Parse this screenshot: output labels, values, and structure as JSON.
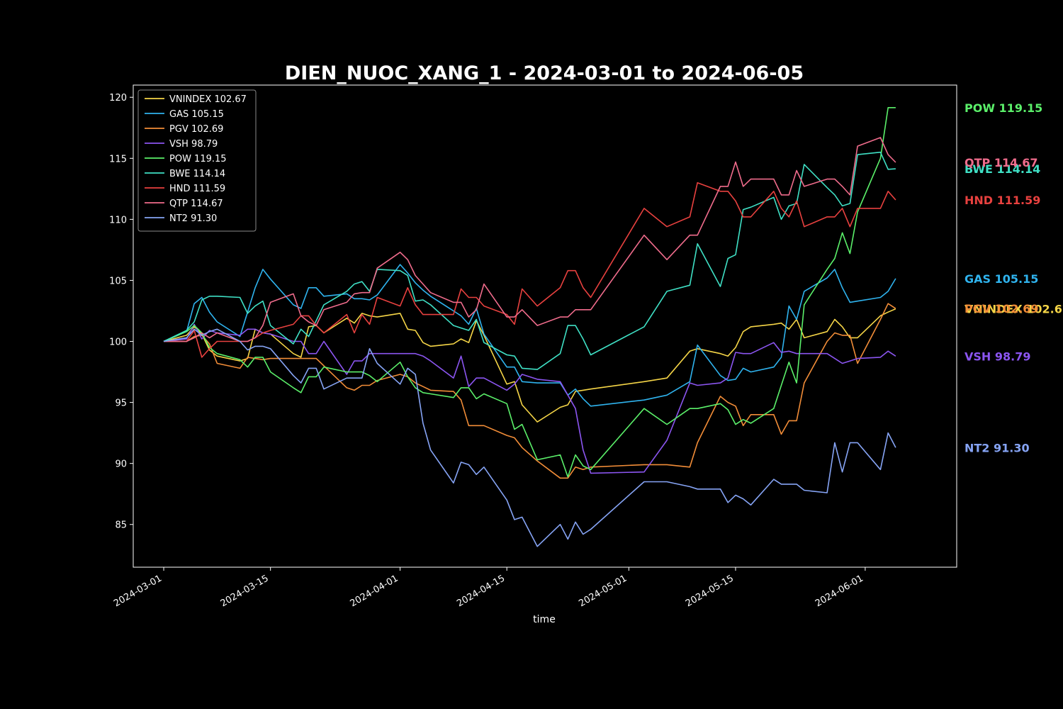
{
  "chart_data": {
    "type": "line",
    "title": "DIEN_NUOC_XANG_1 - 2024-03-01 to 2024-06-05",
    "xlabel": "time",
    "ylabel": "",
    "ylim": [
      81.5,
      121
    ],
    "xlim": [
      "2024-02-26",
      "2024-06-13"
    ],
    "x_ticks": [
      "2024-03-01",
      "2024-03-15",
      "2024-04-01",
      "2024-04-15",
      "2024-05-01",
      "2024-05-15",
      "2024-06-01"
    ],
    "y_ticks": [
      85,
      90,
      95,
      100,
      105,
      110,
      115,
      120
    ],
    "grid": false,
    "legend_position": "upper-left",
    "dates": [
      "2024-03-01",
      "2024-03-04",
      "2024-03-05",
      "2024-03-06",
      "2024-03-07",
      "2024-03-08",
      "2024-03-11",
      "2024-03-12",
      "2024-03-13",
      "2024-03-14",
      "2024-03-15",
      "2024-03-18",
      "2024-03-19",
      "2024-03-20",
      "2024-03-21",
      "2024-03-22",
      "2024-03-25",
      "2024-03-26",
      "2024-03-27",
      "2024-03-28",
      "2024-03-29",
      "2024-04-01",
      "2024-04-02",
      "2024-04-03",
      "2024-04-04",
      "2024-04-05",
      "2024-04-08",
      "2024-04-09",
      "2024-04-10",
      "2024-04-11",
      "2024-04-12",
      "2024-04-15",
      "2024-04-16",
      "2024-04-17",
      "2024-04-19",
      "2024-04-22",
      "2024-04-23",
      "2024-04-24",
      "2024-04-25",
      "2024-04-26",
      "2024-05-03",
      "2024-05-06",
      "2024-05-09",
      "2024-05-10",
      "2024-05-13",
      "2024-05-14",
      "2024-05-15",
      "2024-05-16",
      "2024-05-17",
      "2024-05-20",
      "2024-05-21",
      "2024-05-22",
      "2024-05-23",
      "2024-05-24",
      "2024-05-27",
      "2024-05-28",
      "2024-05-29",
      "2024-05-30",
      "2024-05-31",
      "2024-06-03",
      "2024-06-04",
      "2024-06-05"
    ],
    "series": [
      {
        "name": "VNINDEX",
        "last_label": "VNINDEX 102.67",
        "color": "#f5d547",
        "values": [
          100.0,
          100.5,
          101.2,
          100.6,
          99.3,
          98.8,
          98.4,
          98.6,
          101.0,
          100.7,
          100.6,
          99.0,
          98.7,
          101.2,
          101.3,
          100.7,
          101.9,
          101.5,
          102.3,
          102.1,
          102.0,
          102.3,
          101.0,
          100.9,
          99.9,
          99.6,
          99.8,
          100.2,
          99.9,
          101.7,
          100.5,
          96.5,
          96.7,
          94.8,
          93.4,
          94.6,
          94.8,
          95.9,
          96.0,
          96.1,
          96.7,
          97.0,
          99.2,
          99.4,
          99.0,
          98.8,
          99.5,
          100.8,
          101.2,
          101.4,
          101.5,
          101.0,
          101.8,
          100.3,
          100.8,
          101.8,
          101.2,
          100.3,
          100.3,
          102.1,
          102.4,
          102.67
        ]
      },
      {
        "name": "GAS",
        "last_label": "GAS 105.15",
        "color": "#2fb3ee",
        "values": [
          100.0,
          100.8,
          103.1,
          103.6,
          102.4,
          101.6,
          100.4,
          102.4,
          104.4,
          105.9,
          105.1,
          103.0,
          102.7,
          104.4,
          104.4,
          103.7,
          103.9,
          103.5,
          103.5,
          103.4,
          103.8,
          106.3,
          105.6,
          104.8,
          104.2,
          103.7,
          102.5,
          102.1,
          101.4,
          102.7,
          100.6,
          97.9,
          97.9,
          96.7,
          96.6,
          96.6,
          95.6,
          96.1,
          95.3,
          94.7,
          95.2,
          95.6,
          96.7,
          99.7,
          97.2,
          96.8,
          96.9,
          97.8,
          97.5,
          97.9,
          98.7,
          102.9,
          101.8,
          104.1,
          105.2,
          105.9,
          104.4,
          103.2,
          103.3,
          103.6,
          104.1,
          105.15
        ]
      },
      {
        "name": "PGV",
        "last_label": "PGV 102.69",
        "color": "#f28d38",
        "values": [
          100.0,
          100.0,
          100.4,
          100.5,
          99.8,
          98.2,
          97.8,
          98.7,
          98.6,
          98.5,
          98.6,
          98.6,
          98.6,
          98.6,
          98.6,
          98.0,
          96.2,
          96.0,
          96.4,
          96.4,
          96.8,
          97.3,
          97.1,
          96.6,
          96.3,
          96.0,
          95.9,
          95.2,
          93.1,
          93.1,
          93.1,
          92.3,
          92.1,
          91.3,
          90.2,
          88.8,
          88.8,
          89.7,
          89.5,
          89.7,
          89.9,
          89.9,
          89.7,
          91.7,
          95.5,
          95.0,
          94.7,
          93.1,
          94.0,
          94.0,
          92.4,
          93.5,
          93.5,
          96.6,
          100.0,
          100.7,
          100.5,
          100.5,
          98.2,
          101.8,
          103.1,
          102.69
        ]
      },
      {
        "name": "VSH",
        "last_label": "VSH 98.79",
        "color": "#8b55f0",
        "values": [
          100.0,
          100.2,
          101.4,
          100.2,
          100.9,
          100.7,
          100.5,
          101.0,
          101.0,
          100.7,
          100.6,
          100.0,
          100.0,
          99.0,
          99.0,
          100.0,
          97.3,
          98.4,
          98.4,
          99.0,
          99.0,
          99.0,
          99.0,
          99.0,
          98.8,
          98.4,
          97.0,
          98.8,
          96.3,
          97.0,
          97.0,
          96.0,
          96.5,
          97.3,
          96.9,
          96.7,
          95.6,
          94.5,
          91.1,
          89.2,
          89.3,
          91.9,
          96.6,
          96.4,
          96.6,
          97.0,
          99.1,
          99.0,
          99.0,
          99.9,
          99.1,
          99.2,
          99.0,
          99.0,
          99.0,
          98.6,
          98.2,
          98.4,
          98.6,
          98.7,
          99.2,
          98.79
        ]
      },
      {
        "name": "POW",
        "last_label": "POW 119.15",
        "color": "#5bf06a",
        "values": [
          100.0,
          100.8,
          101.3,
          100.7,
          99.5,
          99.0,
          98.5,
          97.9,
          98.7,
          98.7,
          97.5,
          96.2,
          95.8,
          97.1,
          97.1,
          97.9,
          97.5,
          97.5,
          97.5,
          97.2,
          96.7,
          98.3,
          97.1,
          96.2,
          95.8,
          95.7,
          95.4,
          96.2,
          96.2,
          95.3,
          95.7,
          94.9,
          92.8,
          93.2,
          90.3,
          90.7,
          88.9,
          90.7,
          89.8,
          89.5,
          94.5,
          93.2,
          94.5,
          94.5,
          94.9,
          94.4,
          93.2,
          93.6,
          93.3,
          94.5,
          96.4,
          98.3,
          96.6,
          103.0,
          105.9,
          106.8,
          108.9,
          107.2,
          110.6,
          115.0,
          119.15,
          119.15
        ]
      },
      {
        "name": "BWE",
        "last_label": "BWE 114.14",
        "color": "#3fe0c5",
        "values": [
          100.0,
          100.9,
          101.6,
          103.4,
          103.7,
          103.7,
          103.6,
          102.3,
          102.9,
          103.3,
          101.3,
          99.8,
          101.0,
          100.4,
          101.7,
          103.0,
          104.1,
          104.7,
          104.9,
          104.1,
          105.9,
          105.8,
          105.4,
          103.3,
          103.4,
          103.0,
          101.3,
          101.1,
          100.9,
          101.8,
          99.9,
          98.9,
          98.8,
          97.8,
          97.7,
          99.0,
          101.3,
          101.3,
          100.2,
          98.9,
          101.2,
          104.1,
          104.6,
          108.0,
          104.5,
          106.8,
          107.1,
          110.8,
          111.0,
          111.8,
          110.0,
          111.1,
          111.3,
          114.5,
          112.6,
          112.0,
          111.1,
          111.3,
          115.3,
          115.5,
          114.1,
          114.14
        ]
      },
      {
        "name": "HND",
        "last_label": "HND 111.59",
        "color": "#e8413f",
        "values": [
          100.0,
          100.0,
          100.9,
          98.7,
          99.4,
          100.0,
          100.0,
          100.0,
          100.3,
          100.7,
          100.9,
          101.4,
          102.1,
          102.1,
          101.3,
          100.7,
          102.2,
          100.7,
          102.2,
          101.4,
          103.6,
          102.9,
          104.4,
          103.0,
          102.2,
          102.2,
          102.2,
          104.3,
          103.6,
          103.6,
          102.9,
          102.2,
          101.4,
          104.3,
          102.9,
          104.4,
          105.8,
          105.8,
          104.4,
          103.6,
          110.9,
          109.4,
          110.2,
          113.0,
          112.3,
          112.3,
          111.5,
          110.2,
          110.2,
          112.3,
          110.9,
          110.2,
          111.5,
          109.4,
          110.2,
          110.2,
          110.9,
          109.4,
          110.9,
          110.9,
          112.3,
          111.59
        ]
      },
      {
        "name": "QTP",
        "last_label": "QTP 114.67",
        "color": "#f06c8c",
        "values": [
          100.0,
          100.0,
          100.3,
          100.7,
          100.3,
          100.7,
          100.0,
          100.0,
          100.3,
          101.3,
          103.2,
          103.9,
          102.1,
          101.6,
          101.3,
          102.6,
          103.2,
          103.9,
          104.0,
          104.0,
          106.0,
          107.3,
          106.7,
          105.4,
          104.7,
          104.0,
          103.2,
          103.2,
          102.0,
          102.6,
          104.7,
          102.0,
          102.0,
          102.6,
          101.3,
          102.0,
          102.0,
          102.6,
          102.6,
          102.6,
          108.7,
          106.7,
          108.7,
          108.7,
          112.7,
          112.7,
          114.7,
          112.7,
          113.3,
          113.3,
          112.0,
          112.0,
          114.0,
          112.7,
          113.3,
          113.3,
          112.7,
          112.0,
          116.0,
          116.7,
          115.3,
          114.67
        ]
      },
      {
        "name": "NT2",
        "last_label": "NT2 91.30",
        "color": "#86a4f5",
        "values": [
          100.0,
          100.3,
          101.0,
          100.5,
          100.8,
          101.0,
          100.0,
          99.3,
          99.6,
          99.6,
          99.4,
          97.2,
          96.6,
          97.8,
          97.8,
          96.1,
          97.0,
          97.0,
          97.0,
          99.4,
          98.2,
          96.5,
          97.8,
          97.3,
          93.3,
          91.1,
          88.4,
          90.1,
          89.9,
          89.1,
          89.7,
          87.0,
          85.4,
          85.6,
          83.2,
          85.0,
          83.8,
          85.2,
          84.2,
          84.6,
          88.5,
          88.5,
          88.1,
          87.9,
          87.9,
          86.8,
          87.4,
          87.1,
          86.6,
          88.7,
          88.3,
          88.3,
          88.3,
          87.8,
          87.6,
          91.7,
          89.3,
          91.7,
          91.7,
          89.5,
          92.5,
          91.3
        ]
      }
    ]
  }
}
